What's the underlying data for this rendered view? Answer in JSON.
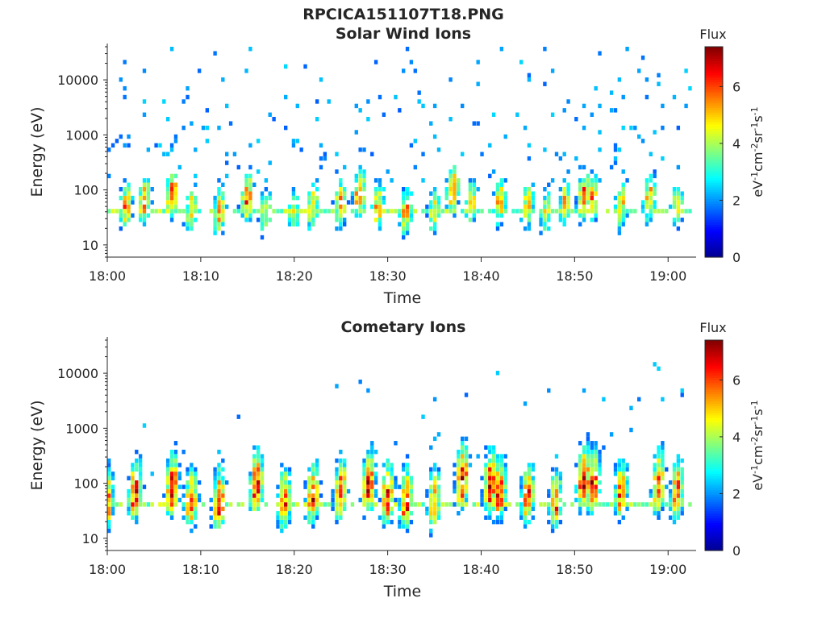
{
  "figure": {
    "title": "RPCICA151107T18.PNG"
  },
  "colormap": {
    "stops": [
      "#00008f",
      "#0000ff",
      "#0080ff",
      "#00ffff",
      "#80ff80",
      "#ffff00",
      "#ff8000",
      "#ff0000",
      "#800000"
    ]
  },
  "chart_data": [
    {
      "type": "heatmap",
      "title": "Solar Wind Ions",
      "xlabel": "Time",
      "ylabel": "Energy (eV)",
      "y_scale": "log",
      "ylim": [
        6,
        40000
      ],
      "xlim": [
        "18:00",
        "19:03"
      ],
      "x_ticks": [
        "18:00",
        "18:10",
        "18:20",
        "18:30",
        "18:40",
        "18:50",
        "19:00"
      ],
      "y_ticks": [
        10,
        100,
        1000,
        10000
      ],
      "y_tick_labels": [
        "10",
        "100",
        "1000",
        "10000"
      ],
      "colorbar": {
        "title": "Flux",
        "label": "eV-1cm-2sr-1s-1",
        "range": [
          0,
          7.4
        ],
        "ticks": [
          0,
          2,
          4,
          6
        ],
        "tick_labels": [
          "0",
          "2",
          "4",
          "6"
        ]
      },
      "flux_bursts": [
        {
          "time": "18:02",
          "peak_energy_ev": 50,
          "peak_flux": 5.5
        },
        {
          "time": "18:04",
          "peak_energy_ev": 60,
          "peak_flux": 5.8
        },
        {
          "time": "18:07",
          "peak_energy_ev": 80,
          "peak_flux": 6.2
        },
        {
          "time": "18:09",
          "peak_energy_ev": 45,
          "peak_flux": 5.0
        },
        {
          "time": "18:12",
          "peak_energy_ev": 40,
          "peak_flux": 5.5
        },
        {
          "time": "18:15",
          "peak_energy_ev": 70,
          "peak_flux": 6.0
        },
        {
          "time": "18:17",
          "peak_energy_ev": 40,
          "peak_flux": 4.8
        },
        {
          "time": "18:20",
          "peak_energy_ev": 40,
          "peak_flux": 4.5
        },
        {
          "time": "18:22",
          "peak_energy_ev": 50,
          "peak_flux": 5.2
        },
        {
          "time": "18:25",
          "peak_energy_ev": 60,
          "peak_flux": 5.5
        },
        {
          "time": "18:27",
          "peak_energy_ev": 80,
          "peak_flux": 6.0
        },
        {
          "time": "18:29",
          "peak_energy_ev": 50,
          "peak_flux": 5.5
        },
        {
          "time": "18:32",
          "peak_energy_ev": 40,
          "peak_flux": 5.5
        },
        {
          "time": "18:35",
          "peak_energy_ev": 40,
          "peak_flux": 4.8
        },
        {
          "time": "18:37",
          "peak_energy_ev": 100,
          "peak_flux": 6.3
        },
        {
          "time": "18:39",
          "peak_energy_ev": 60,
          "peak_flux": 5.0
        },
        {
          "time": "18:42",
          "peak_energy_ev": 60,
          "peak_flux": 5.4
        },
        {
          "time": "18:45",
          "peak_energy_ev": 50,
          "peak_flux": 5.2
        },
        {
          "time": "18:47",
          "peak_energy_ev": 40,
          "peak_flux": 4.5
        },
        {
          "time": "18:49",
          "peak_energy_ev": 60,
          "peak_flux": 5.0
        },
        {
          "time": "18:51",
          "peak_energy_ev": 80,
          "peak_flux": 5.8
        },
        {
          "time": "18:52",
          "peak_energy_ev": 70,
          "peak_flux": 5.5
        },
        {
          "time": "18:55",
          "peak_energy_ev": 50,
          "peak_flux": 5.0
        },
        {
          "time": "18:58",
          "peak_energy_ev": 70,
          "peak_flux": 5.5
        },
        {
          "time": "19:01",
          "peak_energy_ev": 50,
          "peak_flux": 5.0
        }
      ]
    },
    {
      "type": "heatmap",
      "title": "Cometary Ions",
      "xlabel": "Time",
      "ylabel": "Energy (eV)",
      "y_scale": "log",
      "ylim": [
        6,
        40000
      ],
      "xlim": [
        "18:00",
        "19:03"
      ],
      "x_ticks": [
        "18:00",
        "18:10",
        "18:20",
        "18:30",
        "18:40",
        "18:50",
        "19:00"
      ],
      "y_ticks": [
        10,
        100,
        1000,
        10000
      ],
      "y_tick_labels": [
        "10",
        "100",
        "1000",
        "10000"
      ],
      "colorbar": {
        "title": "Flux",
        "label": "eV-1cm-2sr-1s-1",
        "range": [
          0,
          7.4
        ],
        "ticks": [
          0,
          2,
          4,
          6
        ],
        "tick_labels": [
          "0",
          "2",
          "4",
          "6"
        ]
      },
      "flux_bursts": [
        {
          "time": "18:00",
          "peak_energy_ev": 40,
          "peak_flux": 6.0
        },
        {
          "time": "18:03",
          "peak_energy_ev": 60,
          "peak_flux": 6.8
        },
        {
          "time": "18:07",
          "peak_energy_ev": 70,
          "peak_flux": 6.8
        },
        {
          "time": "18:09",
          "peak_energy_ev": 40,
          "peak_flux": 6.0
        },
        {
          "time": "18:12",
          "peak_energy_ev": 40,
          "peak_flux": 6.5
        },
        {
          "time": "18:16",
          "peak_energy_ev": 80,
          "peak_flux": 6.8
        },
        {
          "time": "18:19",
          "peak_energy_ev": 40,
          "peak_flux": 6.0
        },
        {
          "time": "18:22",
          "peak_energy_ev": 50,
          "peak_flux": 6.2
        },
        {
          "time": "18:25",
          "peak_energy_ev": 60,
          "peak_flux": 6.3
        },
        {
          "time": "18:28",
          "peak_energy_ev": 80,
          "peak_flux": 6.8
        },
        {
          "time": "18:30",
          "peak_energy_ev": 50,
          "peak_flux": 6.5
        },
        {
          "time": "18:32",
          "peak_energy_ev": 40,
          "peak_flux": 6.3
        },
        {
          "time": "18:35",
          "peak_energy_ev": 40,
          "peak_flux": 5.8
        },
        {
          "time": "18:38",
          "peak_energy_ev": 100,
          "peak_flux": 7.0
        },
        {
          "time": "18:41",
          "peak_energy_ev": 80,
          "peak_flux": 6.8
        },
        {
          "time": "18:42",
          "peak_energy_ev": 60,
          "peak_flux": 6.5
        },
        {
          "time": "18:45",
          "peak_energy_ev": 50,
          "peak_flux": 6.2
        },
        {
          "time": "18:48",
          "peak_energy_ev": 40,
          "peak_flux": 5.8
        },
        {
          "time": "18:51",
          "peak_energy_ev": 100,
          "peak_flux": 7.0
        },
        {
          "time": "18:52",
          "peak_energy_ev": 80,
          "peak_flux": 6.8
        },
        {
          "time": "18:55",
          "peak_energy_ev": 60,
          "peak_flux": 6.0
        },
        {
          "time": "18:59",
          "peak_energy_ev": 80,
          "peak_flux": 6.5
        },
        {
          "time": "19:01",
          "peak_energy_ev": 60,
          "peak_flux": 6.0
        }
      ]
    }
  ]
}
